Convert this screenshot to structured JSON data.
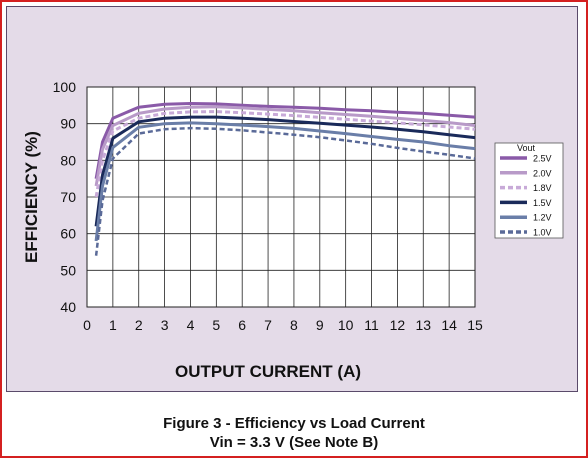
{
  "figure": {
    "caption_line1": "Figure 3 - Efficiency vs Load Current",
    "caption_line2": "Vin = 3.3 V (See Note B)"
  },
  "colors": {
    "frame": "#d42020",
    "panel_bg": "#e4dbe8",
    "plot_bg": "#ffffff",
    "grid": "#222222"
  },
  "chart_data": {
    "type": "line",
    "title": "",
    "xlabel": "OUTPUT CURRENT (A)",
    "ylabel": "EFFICIENCY (%)",
    "xlim": [
      0,
      15
    ],
    "ylim": [
      40,
      100
    ],
    "xticks": [
      0,
      1,
      2,
      3,
      4,
      5,
      6,
      7,
      8,
      9,
      10,
      11,
      12,
      13,
      14,
      15
    ],
    "yticks": [
      40,
      50,
      60,
      70,
      80,
      90,
      100
    ],
    "grid": true,
    "legend": {
      "title": "Vout",
      "placement": "right"
    },
    "series": [
      {
        "name": "2.5V",
        "color": "#8a5aa8",
        "dash": "solid",
        "width": 3,
        "x": [
          0.35,
          0.6,
          1,
          2,
          3,
          4,
          5,
          6,
          7,
          8,
          9,
          10,
          11,
          12,
          13,
          14,
          15
        ],
        "y": [
          75,
          85,
          91.5,
          94.5,
          95.3,
          95.5,
          95.4,
          95.0,
          94.7,
          94.5,
          94.2,
          93.8,
          93.5,
          93.1,
          92.8,
          92.3,
          91.8
        ]
      },
      {
        "name": "2.0V",
        "color": "#b89ac8",
        "dash": "solid",
        "width": 3,
        "x": [
          0.35,
          0.6,
          1,
          2,
          3,
          4,
          5,
          6,
          7,
          8,
          9,
          10,
          11,
          12,
          13,
          14,
          15
        ],
        "y": [
          73,
          83,
          89.5,
          92.8,
          94.0,
          94.5,
          94.6,
          94.3,
          93.9,
          93.5,
          93.0,
          92.5,
          92.0,
          91.5,
          90.9,
          90.3,
          89.5
        ]
      },
      {
        "name": "1.8V",
        "color": "#c8aad8",
        "dash": "dashed",
        "width": 3,
        "x": [
          0.35,
          0.6,
          1,
          2,
          3,
          4,
          5,
          6,
          7,
          8,
          9,
          10,
          11,
          12,
          13,
          14,
          15
        ],
        "y": [
          70,
          80,
          88.0,
          91.5,
          92.8,
          93.2,
          93.3,
          93.0,
          92.6,
          92.2,
          91.7,
          91.2,
          90.7,
          90.2,
          89.7,
          89.1,
          88.5
        ]
      },
      {
        "name": "1.5V",
        "color": "#1a2a5a",
        "dash": "solid",
        "width": 3,
        "x": [
          0.35,
          0.6,
          1,
          2,
          3,
          4,
          5,
          6,
          7,
          8,
          9,
          10,
          11,
          12,
          13,
          14,
          15
        ],
        "y": [
          62,
          76,
          86.0,
          90.5,
          91.5,
          91.8,
          91.8,
          91.5,
          91.1,
          90.6,
          90.1,
          89.6,
          89.1,
          88.5,
          87.8,
          87.0,
          86.2
        ]
      },
      {
        "name": "1.2V",
        "color": "#6a7ea8",
        "dash": "solid",
        "width": 3,
        "x": [
          0.35,
          0.6,
          1,
          2,
          3,
          4,
          5,
          6,
          7,
          8,
          9,
          10,
          11,
          12,
          13,
          14,
          15
        ],
        "y": [
          58,
          73,
          83.5,
          89.0,
          90.0,
          90.2,
          90.0,
          89.6,
          89.2,
          88.7,
          88.0,
          87.3,
          86.5,
          85.7,
          85.0,
          84.0,
          83.2
        ]
      },
      {
        "name": "1.0V",
        "color": "#5a6a98",
        "dash": "dashed",
        "width": 2.5,
        "x": [
          0.35,
          0.6,
          1,
          2,
          3,
          4,
          5,
          6,
          7,
          8,
          9,
          10,
          11,
          12,
          13,
          14,
          15
        ],
        "y": [
          54,
          69,
          80.5,
          87.3,
          88.5,
          88.8,
          88.6,
          88.2,
          87.6,
          87.0,
          86.3,
          85.4,
          84.5,
          83.4,
          82.4,
          81.5,
          80.5
        ]
      }
    ]
  }
}
